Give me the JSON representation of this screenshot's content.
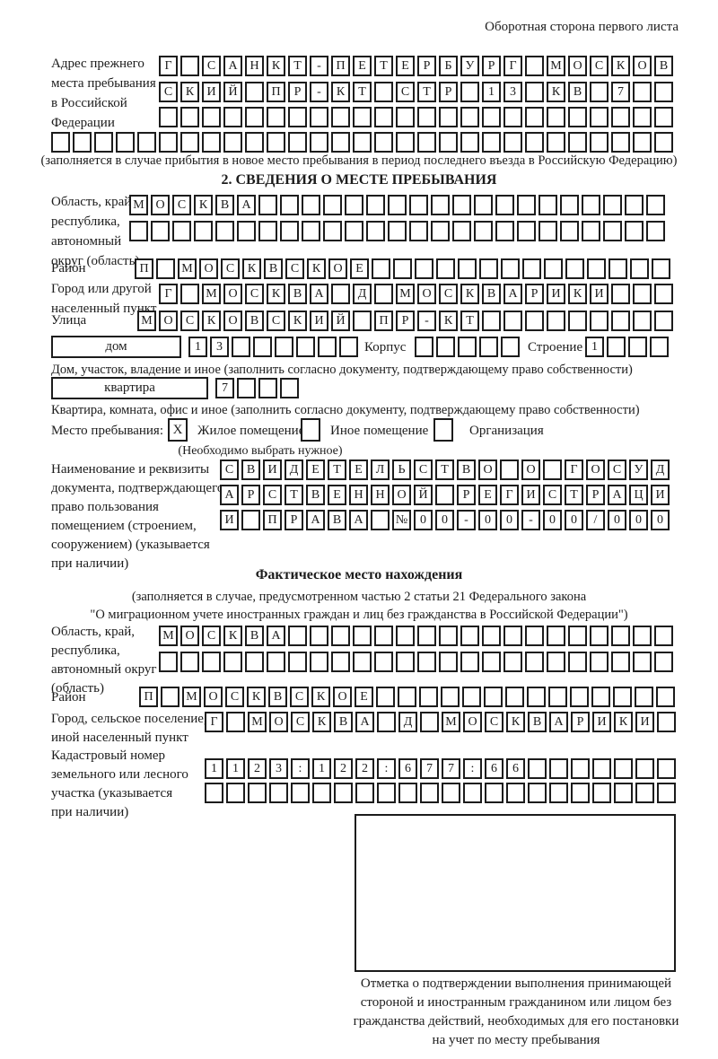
{
  "page": {
    "header_note": "Оборотная сторона первого листа"
  },
  "prev_address": {
    "label_lines": [
      "Адрес прежнего",
      "места пребывания",
      "в Российской",
      "Федерации"
    ],
    "row1": {
      "count": 24,
      "text": "Г САНКТ-ПЕТЕРБУРГ МОСКОВ"
    },
    "row2": {
      "count": 24,
      "text": "СКИЙ ПР-КТ СТР 13 КВ 7"
    },
    "row3": {
      "count": 24,
      "text": ""
    },
    "row4": {
      "count": 29,
      "text": ""
    },
    "note": "(заполняется в случае прибытия в новое место пребывания в период последнего въезда в Российскую Федерацию)"
  },
  "section2": {
    "title": "2. СВЕДЕНИЯ О МЕСТЕ ПРЕБЫВАНИЯ",
    "oblast": {
      "label_lines": [
        "Область, край,",
        "республика,",
        "автономный",
        "округ (область)"
      ],
      "row1": {
        "count": 25,
        "text": "МОСКВА"
      },
      "row2": {
        "count": 25,
        "text": ""
      }
    },
    "raion": {
      "label": "Район",
      "row": {
        "count": 25,
        "text": "П МОСКВСКОЕ"
      }
    },
    "gorod": {
      "label_lines": [
        "Город или другой",
        "населенный пункт"
      ],
      "row": {
        "count": 24,
        "text": "Г МОСКВА Д МОСКВАРИКИ"
      }
    },
    "ulitsa": {
      "label": "Улица",
      "row": {
        "count": 25,
        "text": "МОСКОВСКИЙ ПР-КТ"
      }
    },
    "dom": {
      "box_label": "дом",
      "number": {
        "count": 8,
        "text": "13"
      },
      "korpus_label": "Корпус",
      "korpus": {
        "count": 5,
        "text": ""
      },
      "stroenie_label": "Строение",
      "stroenie": {
        "count": 4,
        "text": "1"
      },
      "note": "Дом, участок, владение и иное (заполнить согласно документу, подтверждающему право собственности)"
    },
    "kvartira": {
      "box_label": "квартира",
      "number": {
        "count": 4,
        "text": "7"
      },
      "note": "Квартира, комната, офис и иное (заполнить согласно документу, подтверждающему право собственности)"
    },
    "mesto": {
      "label": "Место пребывания:",
      "zhiloe_value": "X",
      "zhiloe_label": "Жилое помещение",
      "inoe_value": "",
      "inoe_label": "Иное помещение",
      "org_value": "",
      "org_label": "Организация",
      "note": "(Необходимо выбрать нужное)"
    },
    "document": {
      "label_lines": [
        "Наименование и реквизиты",
        "документа, подтверждающего",
        "право пользования",
        "помещением (строением,",
        "сооружением) (указывается",
        "при наличии)"
      ],
      "row1": {
        "count": 21,
        "text": "СВИДЕТЕЛЬСТВО О ГОСУД"
      },
      "row2": {
        "count": 21,
        "text": "АРСТВЕННОЙ РЕГИСТРАЦИ"
      },
      "row3": {
        "count": 21,
        "text": "И ПРАВА №00-00-00/000"
      }
    }
  },
  "fact": {
    "title": "Фактическое место нахождения",
    "note_lines": [
      "(заполняется в случае, предусмотренном частью 2 статьи 21 Федерального закона",
      "\"О миграционном учете иностранных граждан и лиц без гражданства в Российской Федерации\")"
    ],
    "oblast": {
      "label_lines": [
        "Область, край,",
        "республика,",
        "автономный округ",
        "(область)"
      ],
      "row1": {
        "count": 24,
        "text": "МОСКВА"
      },
      "row2": {
        "count": 24,
        "text": ""
      }
    },
    "raion": {
      "label": "Район",
      "row": {
        "count": 25,
        "text": "П МОСКВСКОЕ"
      }
    },
    "gorod": {
      "label_lines": [
        "Город, сельское поселение,",
        "иной населенный пункт"
      ],
      "row": {
        "count": 22,
        "text": "Г МОСКВА Д МОСКВАРИКИ"
      }
    },
    "kadastr": {
      "label_lines": [
        "Кадастровый номер",
        "земельного или лесного",
        "участка (указывается",
        "при наличии)"
      ],
      "row1": {
        "count": 22,
        "text": "1123:122:677:66"
      },
      "row2": {
        "count": 22,
        "text": ""
      }
    },
    "stamp_caption_lines": [
      "Отметка о подтверждении выполнения принимающей",
      "стороной и иностранным гражданином или лицом без",
      "гражданства действий, необходимых для его постановки",
      "на учет по месту пребывания"
    ]
  }
}
